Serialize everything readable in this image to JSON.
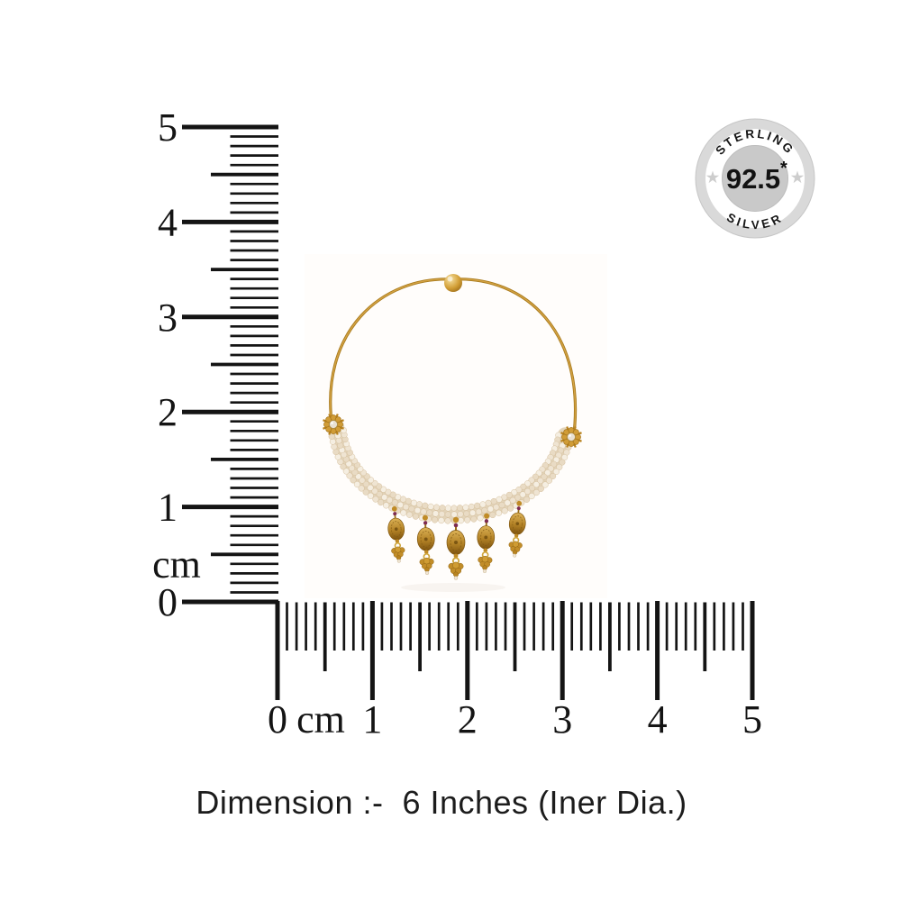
{
  "badge": {
    "arc_top": "STERLING",
    "value": "92.5",
    "value_mark": "*",
    "arc_bottom": "SILVER"
  },
  "rulers": {
    "vertical": {
      "unit": "cm",
      "labels": [
        "5",
        "4",
        "3",
        "2",
        "1",
        "0"
      ]
    },
    "horizontal": {
      "unit": "cm",
      "labels": [
        "0",
        "1",
        "2",
        "3",
        "4",
        "5"
      ]
    }
  },
  "caption": {
    "text": "Dimension :-  6 Inches (Iner Dia.)"
  },
  "colors": {
    "ink": "#141414",
    "gold": "#c08b26",
    "gold_dark": "#8e6312",
    "pearl": "#efe4d2",
    "stone_red": "#7d2b50",
    "badge_ring": "#d9d9d9",
    "badge_inner": "#c9c9c9",
    "badge_star": "#cdcdcd"
  }
}
